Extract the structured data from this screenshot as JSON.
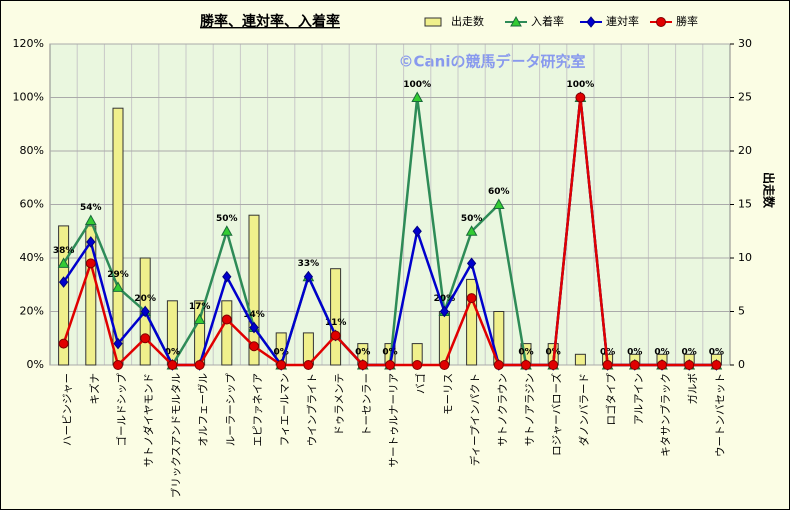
{
  "chart_data": {
    "type": "bar",
    "title": "勝率、連対率、入着率",
    "watermark": "©Caniの競馬データ研究室",
    "y2label": "出走数",
    "categories": [
      "ハービンジャー",
      "キズナ",
      "ゴールドシップ",
      "サトノダイヤモンド",
      "ブリックスアンドモルタル",
      "オルフェーヴル",
      "ルーラーシップ",
      "エピファネイア",
      "フィエールマン",
      "ウインブライト",
      "ドゥラメンテ",
      "トーセンラー",
      "サートゥルナーリア",
      "バゴ",
      "モーリス",
      "ディープインパクト",
      "サトノクラウン",
      "サトノアラジン",
      "ロジャーバローズ",
      "ダノンバラード",
      "ロゴタイプ",
      "アルアイン",
      "キタサンブラック",
      "ガルボ",
      "ウートンバセット"
    ],
    "series": [
      {
        "name": "出走数",
        "type": "bar",
        "axis": "y2",
        "color": "#f0f08c",
        "values": [
          13,
          13,
          24,
          10,
          6,
          6,
          6,
          14,
          3,
          3,
          9,
          2,
          2,
          2,
          5,
          8,
          5,
          2,
          2,
          1,
          1,
          1,
          1,
          1,
          1
        ]
      },
      {
        "name": "入着率",
        "type": "line",
        "marker": "triangle",
        "color": "#2e8b57",
        "marker_color": "#33cc33",
        "values": [
          38,
          54,
          29,
          20,
          0,
          17,
          50,
          14,
          0,
          33,
          11,
          0,
          0,
          100,
          20,
          50,
          60,
          0,
          0,
          100,
          0,
          0,
          0,
          0,
          0
        ],
        "value_labels": [
          "38%",
          "54%",
          "29%",
          "20%",
          "0%",
          "17%",
          "50%",
          "14%",
          "0%",
          "33%",
          "11%",
          "0%",
          "0%",
          "100%",
          "20%",
          "50%",
          "60%",
          "0%",
          "0%",
          "100%",
          "0%",
          "0%",
          "0%",
          "0%",
          "0%"
        ]
      },
      {
        "name": "連対率",
        "type": "line",
        "marker": "diamond",
        "color": "#0000cc",
        "marker_color": "#0000cc",
        "values": [
          31,
          46,
          8,
          20,
          0,
          0,
          33,
          14,
          0,
          33,
          11,
          0,
          0,
          50,
          20,
          38,
          0,
          0,
          0,
          100,
          0,
          0,
          0,
          0,
          0
        ]
      },
      {
        "name": "勝率",
        "type": "line",
        "marker": "circle",
        "color": "#e00000",
        "marker_color": "#e00000",
        "values": [
          8,
          38,
          0,
          10,
          0,
          0,
          17,
          7,
          0,
          0,
          11,
          0,
          0,
          0,
          0,
          25,
          0,
          0,
          0,
          100,
          0,
          0,
          0,
          0,
          0
        ]
      }
    ],
    "ylim": [
      0,
      120
    ],
    "yticks": [
      {
        "value": 0,
        "label": "0%"
      },
      {
        "value": 20,
        "label": "20%"
      },
      {
        "value": 40,
        "label": "40%"
      },
      {
        "value": 60,
        "label": "60%"
      },
      {
        "value": 80,
        "label": "80%"
      },
      {
        "value": 100,
        "label": "100%"
      },
      {
        "value": 120,
        "label": "120%"
      }
    ],
    "y2lim": [
      0,
      30
    ],
    "y2ticks": [
      0,
      5,
      10,
      15,
      20,
      25,
      30
    ],
    "grid": true,
    "legend": "top-right"
  }
}
